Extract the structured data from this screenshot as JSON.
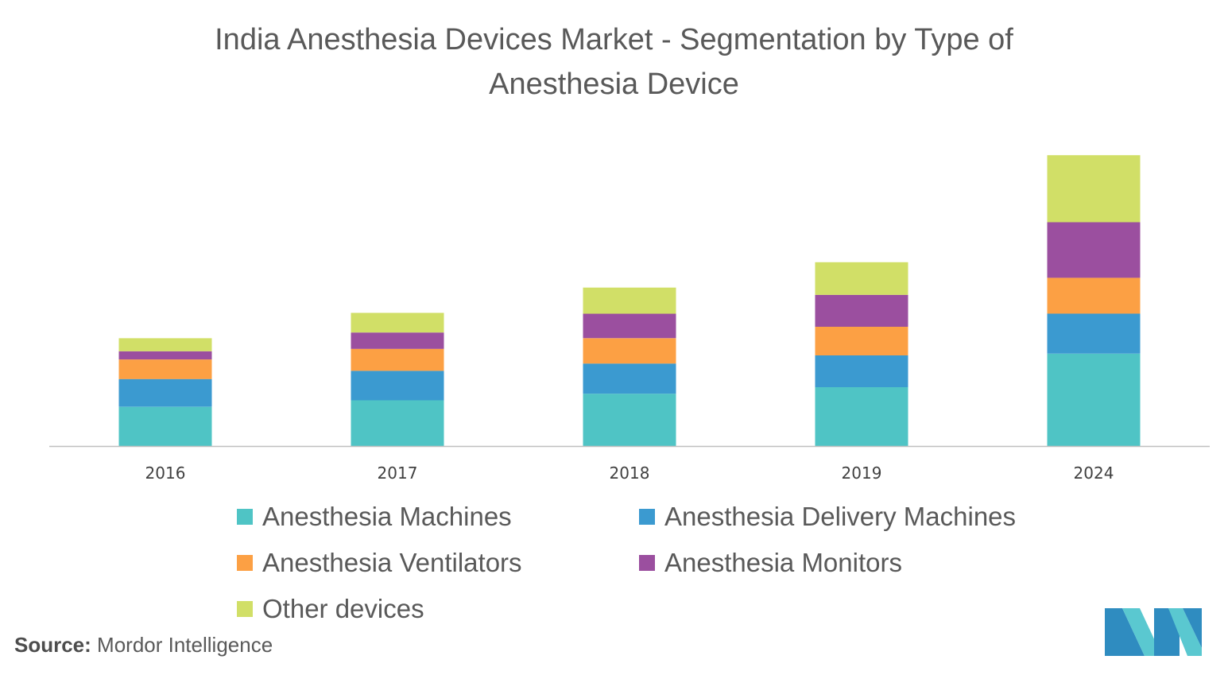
{
  "title_line1": "India Anesthesia Devices Market -  Segmentation by Type of",
  "title_line2": "Anesthesia Device",
  "source_label": "Source:",
  "source_text": "Mordor Intelligence",
  "chart_data": {
    "type": "bar",
    "stacked": true,
    "categories": [
      "2016",
      "2017",
      "2018",
      "2019",
      "2024"
    ],
    "series": [
      {
        "name": "Anesthesia Machines",
        "color": "#4fc4c5",
        "values": [
          4.8,
          5.6,
          6.4,
          7.2,
          11.3
        ]
      },
      {
        "name": "Anesthesia Delivery Machines",
        "color": "#3b9ad0",
        "values": [
          3.4,
          3.6,
          3.7,
          3.9,
          4.9
        ]
      },
      {
        "name": "Anesthesia Ventilators",
        "color": "#fca044",
        "values": [
          2.4,
          2.7,
          3.1,
          3.5,
          4.4
        ]
      },
      {
        "name": "Anesthesia Monitors",
        "color": "#9b4f9f",
        "values": [
          1.0,
          2.0,
          3.0,
          3.9,
          6.8
        ]
      },
      {
        "name": "Other devices",
        "color": "#d1df67",
        "values": [
          1.6,
          2.4,
          3.2,
          4.0,
          8.2
        ]
      }
    ],
    "ylim": [
      0,
      40
    ],
    "y_axis_visible": false,
    "grid": false,
    "legend_position": "bottom"
  }
}
